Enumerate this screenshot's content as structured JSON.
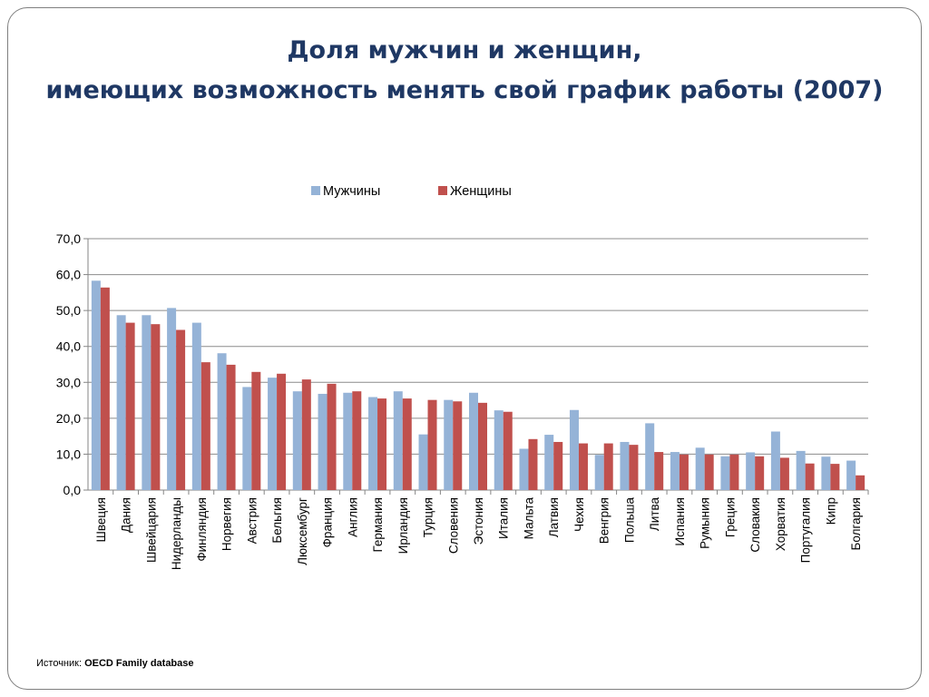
{
  "slide": {
    "title_line1": "Доля мужчин и женщин,",
    "title_line2": "имеющих возможность менять свой график работы (2007)",
    "source_label": "Источник:",
    "source_value": "OECD Family database"
  },
  "chart_data": {
    "type": "bar",
    "title": "",
    "xlabel": "",
    "ylabel": "",
    "ylim": [
      0,
      70
    ],
    "yticks": [
      "0,0",
      "10,0",
      "20,0",
      "30,0",
      "40,0",
      "50,0",
      "60,0",
      "70,0"
    ],
    "grid": true,
    "legend_position": "top-center",
    "categories": [
      "Швеция",
      "Дания",
      "Швейцария",
      "Нидерланды",
      "Финляндия",
      "Норвегия",
      "Австрия",
      "Бельгия",
      "Люксембург",
      "Франция",
      "Англия",
      "Германия",
      "Ирландия",
      "Турция",
      "Словения",
      "Эстония",
      "Италия",
      "Мальта",
      "Латвия",
      "Чехия",
      "Венгрия",
      "Польша",
      "Литва",
      "Испания",
      "Румыния",
      "Греция",
      "Словакия",
      "Хорватия",
      "Португалия",
      "Кипр",
      "Болгария"
    ],
    "series": [
      {
        "name": "Мужчины",
        "color": "#95b3d7",
        "values": [
          58.3,
          48.7,
          48.7,
          50.7,
          46.6,
          38.1,
          28.7,
          31.3,
          27.5,
          26.8,
          27.1,
          25.9,
          27.5,
          15.5,
          25.1,
          27.1,
          22.2,
          11.5,
          15.4,
          22.3,
          9.8,
          13.4,
          18.6,
          10.6,
          11.8,
          9.4,
          10.5,
          16.3,
          10.9,
          9.3,
          8.2
        ]
      },
      {
        "name": "Женщины",
        "color": "#c0504d",
        "values": [
          56.4,
          46.6,
          46.2,
          44.6,
          35.6,
          34.9,
          32.9,
          32.4,
          30.8,
          29.6,
          27.5,
          25.5,
          25.5,
          25.1,
          24.7,
          24.3,
          21.8,
          14.2,
          13.4,
          13.0,
          13.0,
          12.6,
          10.6,
          9.9,
          9.9,
          9.9,
          9.4,
          9.0,
          7.4,
          7.3,
          4.1
        ]
      }
    ]
  }
}
